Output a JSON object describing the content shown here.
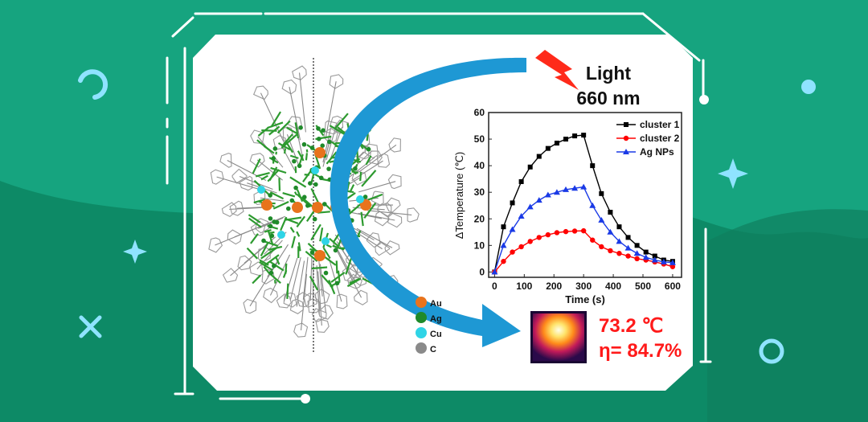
{
  "colors": {
    "background_top": "#16a47f",
    "background_bottom": "#0d8a66",
    "card": "#ffffff",
    "arrow": "#1e98d4",
    "lightning": "#ff2a1a",
    "result_text": "#ff1a1a",
    "accent_light": "#8fe3ff"
  },
  "light_label": {
    "line1": "Light",
    "line2": "660 nm"
  },
  "atom_legend": [
    {
      "symbol": "Au",
      "color": "#e8731c"
    },
    {
      "symbol": "Ag",
      "color": "#1f8a2a"
    },
    {
      "symbol": "Cu",
      "color": "#2fd4e6"
    },
    {
      "symbol": "C",
      "color": "#8a8a8a"
    }
  ],
  "result": {
    "temperature": "73.2 ℃",
    "efficiency": "η= 84.7%"
  },
  "chart_data": {
    "type": "line",
    "xlabel": "Time (s)",
    "ylabel": "ΔTemperature (℃)",
    "xlim": [
      -20,
      630
    ],
    "ylim": [
      -2,
      60
    ],
    "xticks": [
      0,
      100,
      200,
      300,
      400,
      500,
      600
    ],
    "yticks": [
      0,
      10,
      20,
      30,
      40,
      50,
      60
    ],
    "legend_position": "top-right",
    "x": [
      0,
      30,
      60,
      90,
      120,
      150,
      180,
      210,
      240,
      270,
      300,
      330,
      360,
      390,
      420,
      450,
      480,
      510,
      540,
      570,
      600
    ],
    "series": [
      {
        "name": "cluster 1",
        "color": "#000000",
        "marker": "square",
        "values": [
          0,
          17,
          26,
          34,
          39.5,
          43.5,
          46.5,
          48.5,
          50,
          51.2,
          51.5,
          40,
          29.5,
          22.5,
          17,
          13,
          10,
          7.5,
          6,
          4.5,
          4
        ]
      },
      {
        "name": "cluster 2",
        "color": "#ff0000",
        "marker": "circle",
        "values": [
          0,
          4,
          7.5,
          9.5,
          11.5,
          13,
          14,
          14.8,
          15.2,
          15.4,
          15.5,
          12,
          9.5,
          8,
          7,
          6,
          5,
          4.5,
          3.8,
          3,
          2
        ]
      },
      {
        "name": "Ag NPs",
        "color": "#1a3ae6",
        "marker": "triangle",
        "values": [
          0,
          10,
          16,
          21,
          24.5,
          27,
          29,
          30,
          31,
          31.5,
          32,
          25,
          19.5,
          15,
          11.5,
          9,
          7,
          5.5,
          4.5,
          3.8,
          3.5
        ]
      }
    ]
  }
}
